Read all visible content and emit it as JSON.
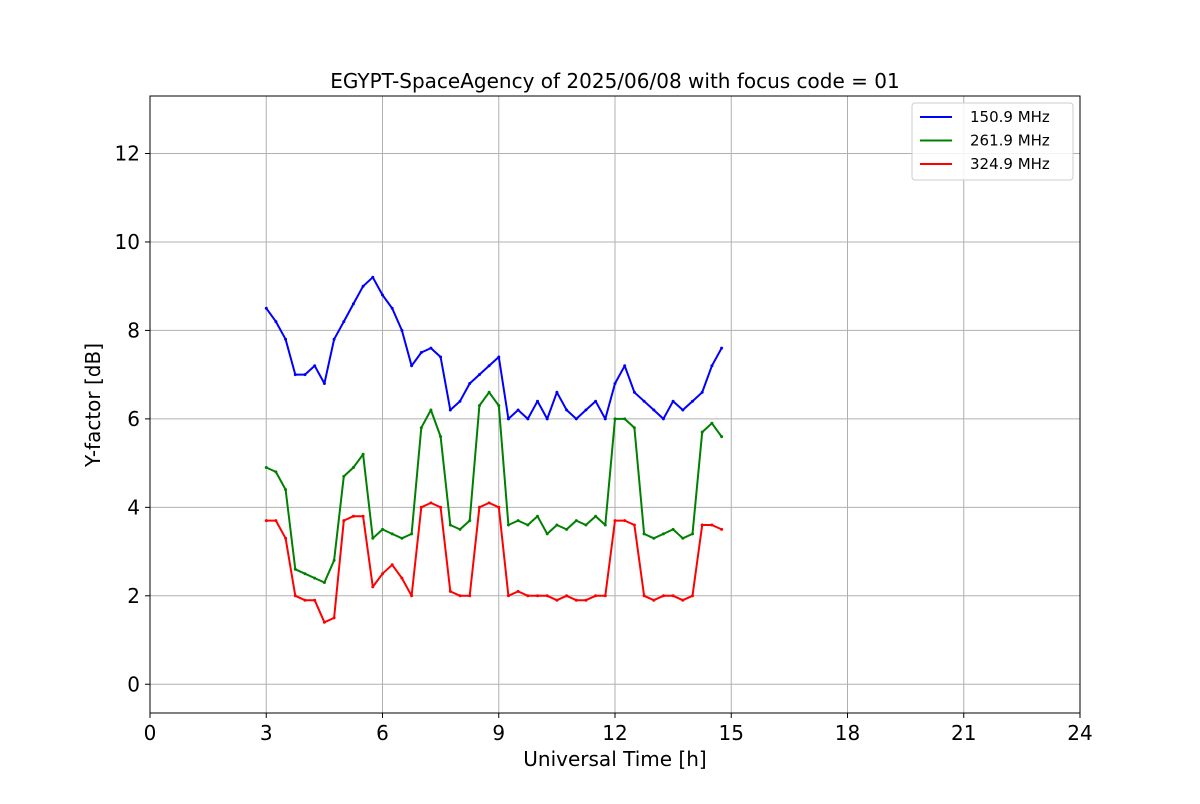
{
  "chart_data": {
    "type": "line",
    "title": "EGYPT-SpaceAgency of 2025/06/08 with focus code = 01",
    "xlabel": "Universal Time [h]",
    "ylabel": "Y-factor [dB]",
    "xlim": [
      0,
      24
    ],
    "ylim": [
      -0.65,
      13.3
    ],
    "xticks": [
      0,
      3,
      6,
      9,
      12,
      15,
      18,
      21,
      24
    ],
    "xtick_labels": [
      "0",
      "3",
      "6",
      "9",
      "12",
      "15",
      "18",
      "21",
      "24"
    ],
    "yticks": [
      0,
      2,
      4,
      6,
      8,
      10,
      12
    ],
    "ytick_labels": [
      "0",
      "2",
      "4",
      "6",
      "8",
      "10",
      "12"
    ],
    "grid": true,
    "legend_position": "top-right",
    "x": [
      3.0,
      3.25,
      3.5,
      3.75,
      4.0,
      4.25,
      4.5,
      4.75,
      5.0,
      5.25,
      5.5,
      5.75,
      6.0,
      6.25,
      6.5,
      6.75,
      7.0,
      7.25,
      7.5,
      7.75,
      8.0,
      8.25,
      8.5,
      8.75,
      9.0,
      9.25,
      9.5,
      9.75,
      10.0,
      10.25,
      10.5,
      10.75,
      11.0,
      11.25,
      11.5,
      11.75,
      12.0,
      12.25,
      12.5,
      12.75,
      13.0,
      13.25,
      13.5,
      13.75,
      14.0,
      14.25,
      14.5,
      14.75
    ],
    "series": [
      {
        "name": "150.9 MHz",
        "color": "#0000ff",
        "values": [
          8.5,
          8.2,
          7.8,
          7.0,
          7.0,
          7.2,
          6.8,
          7.8,
          8.2,
          8.6,
          9.0,
          9.2,
          8.8,
          8.5,
          8.0,
          7.2,
          7.5,
          7.6,
          7.4,
          6.2,
          6.4,
          6.8,
          7.0,
          7.2,
          7.4,
          6.0,
          6.2,
          6.0,
          6.4,
          6.0,
          6.6,
          6.2,
          6.0,
          6.2,
          6.4,
          6.0,
          6.8,
          7.2,
          6.6,
          6.4,
          6.2,
          6.0,
          6.4,
          6.2,
          6.4,
          6.6,
          7.2,
          7.6
        ]
      },
      {
        "name": "261.9 MHz",
        "color": "#008000",
        "values": [
          4.9,
          4.8,
          4.4,
          2.6,
          2.5,
          2.4,
          2.3,
          2.8,
          4.7,
          4.9,
          5.2,
          3.3,
          3.5,
          3.4,
          3.3,
          3.4,
          5.8,
          6.2,
          5.6,
          3.6,
          3.5,
          3.7,
          6.3,
          6.6,
          6.3,
          3.6,
          3.7,
          3.6,
          3.8,
          3.4,
          3.6,
          3.5,
          3.7,
          3.6,
          3.8,
          3.6,
          6.0,
          6.0,
          5.8,
          3.4,
          3.3,
          3.4,
          3.5,
          3.3,
          3.4,
          5.7,
          5.9,
          5.6
        ]
      },
      {
        "name": "324.9 MHz",
        "color": "#ff0000",
        "values": [
          3.7,
          3.7,
          3.3,
          2.0,
          1.9,
          1.9,
          1.4,
          1.5,
          3.7,
          3.8,
          3.8,
          2.2,
          2.5,
          2.7,
          2.4,
          2.0,
          4.0,
          4.1,
          4.0,
          2.1,
          2.0,
          2.0,
          4.0,
          4.1,
          4.0,
          2.0,
          2.1,
          2.0,
          2.0,
          2.0,
          1.9,
          2.0,
          1.9,
          1.9,
          2.0,
          2.0,
          3.7,
          3.7,
          3.6,
          2.0,
          1.9,
          2.0,
          2.0,
          1.9,
          2.0,
          3.6,
          3.6,
          3.5
        ]
      }
    ]
  }
}
